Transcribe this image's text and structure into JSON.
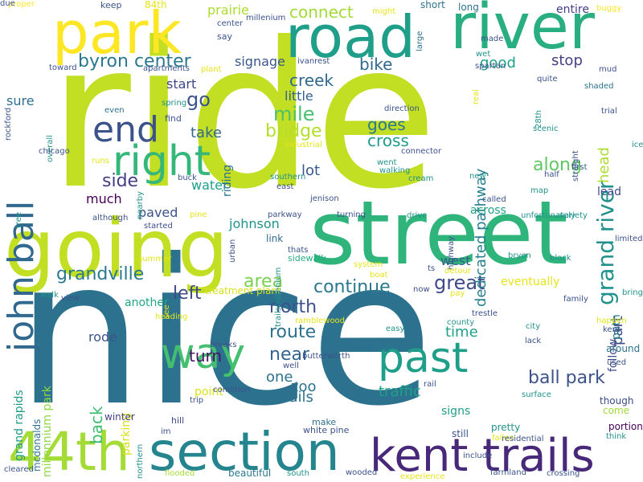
{
  "words": [
    {
      "text": "ride",
      "color": "#c2df23",
      "vertical": false
    },
    {
      "text": "nice",
      "color": "#2c728e",
      "vertical": false
    },
    {
      "text": "street",
      "color": "#2fb47c",
      "vertical": false
    },
    {
      "text": "going",
      "color": "#c2df23",
      "vertical": false
    },
    {
      "text": "river",
      "color": "#28ae80",
      "vertical": false
    },
    {
      "text": "road",
      "color": "#1f9e89",
      "vertical": false
    },
    {
      "text": "park",
      "color": "#fde725",
      "vertical": false
    },
    {
      "text": "section",
      "color": "#25858e",
      "vertical": false
    },
    {
      "text": "44th",
      "color": "#a5db36",
      "vertical": false
    },
    {
      "text": "kent trails",
      "color": "#482878",
      "vertical": false
    },
    {
      "text": "past",
      "color": "#1f9e89",
      "vertical": false
    },
    {
      "text": "way",
      "color": "#44bf70",
      "vertical": false
    },
    {
      "text": "right",
      "color": "#35b779",
      "vertical": false
    },
    {
      "text": "end",
      "color": "#3b528b",
      "vertical": false
    },
    {
      "text": "john ball",
      "color": "#31688e",
      "vertical": true
    },
    {
      "text": "byron center",
      "color": "#2a788e",
      "vertical": false
    },
    {
      "text": "grand river",
      "color": "#21918c",
      "vertical": true
    },
    {
      "text": "great",
      "color": "#3e4a89",
      "vertical": false
    },
    {
      "text": "continue",
      "color": "#2a788e",
      "vertical": false
    },
    {
      "text": "grandville",
      "color": "#2a788e",
      "vertical": false
    },
    {
      "text": "along",
      "color": "#5ec962",
      "vertical": false
    },
    {
      "text": "mile",
      "color": "#4ac16d",
      "vertical": false
    },
    {
      "text": "bridge",
      "color": "#b5de2b",
      "vertical": false
    },
    {
      "text": "go",
      "color": "#3b528b",
      "vertical": false
    },
    {
      "text": "side",
      "color": "#433e85",
      "vertical": false
    },
    {
      "text": "area",
      "color": "#7ad151",
      "vertical": false
    },
    {
      "text": "left",
      "color": "#3e4a89",
      "vertical": false
    },
    {
      "text": "north",
      "color": "#3b528b",
      "vertical": false
    },
    {
      "text": "route",
      "color": "#2c728e",
      "vertical": false
    },
    {
      "text": "near",
      "color": "#32648e",
      "vertical": false
    },
    {
      "text": "ball park",
      "color": "#3b528b",
      "vertical": false
    },
    {
      "text": "dedicated pathway",
      "color": "#277f8e",
      "vertical": true
    },
    {
      "text": "cross",
      "color": "#1e9b8a",
      "vertical": false
    },
    {
      "text": "goes",
      "color": "#2a788e",
      "vertical": false
    },
    {
      "text": "creek",
      "color": "#31688e",
      "vertical": false
    },
    {
      "text": "bike",
      "color": "#31688e",
      "vertical": false
    },
    {
      "text": "connect",
      "color": "#a2da37",
      "vertical": false
    },
    {
      "text": "stop",
      "color": "#433e85",
      "vertical": false
    },
    {
      "text": "good",
      "color": "#1fa187",
      "vertical": false
    },
    {
      "text": "signage",
      "color": "#39568c",
      "vertical": false
    },
    {
      "text": "prairie",
      "color": "#addc30",
      "vertical": false
    },
    {
      "text": "lot",
      "color": "#38588c",
      "vertical": false
    },
    {
      "text": "take",
      "color": "#31688e",
      "vertical": false
    },
    {
      "text": "back",
      "color": "#3fbc73",
      "vertical": true
    },
    {
      "text": "turn",
      "color": "#471164",
      "vertical": false
    },
    {
      "text": "time",
      "color": "#1fa088",
      "vertical": false
    },
    {
      "text": "one",
      "color": "#2c728e",
      "vertical": false
    },
    {
      "text": "zoo",
      "color": "#2d708e",
      "vertical": false
    },
    {
      "text": "trails",
      "color": "#2c728e",
      "vertical": false
    },
    {
      "text": "traffic",
      "color": "#1fa188",
      "vertical": false
    },
    {
      "text": "part",
      "color": "#3e4a89",
      "vertical": true
    },
    {
      "text": "path",
      "color": "#287c8e",
      "vertical": true
    },
    {
      "text": "head",
      "color": "#addc30",
      "vertical": true
    },
    {
      "text": "west",
      "color": "#365c8d",
      "vertical": false
    },
    {
      "text": "water",
      "color": "#1fa088",
      "vertical": false
    },
    {
      "text": "much",
      "color": "#440154",
      "vertical": false
    },
    {
      "text": "paved",
      "color": "#3b528b",
      "vertical": false
    },
    {
      "text": "johnson",
      "color": "#20928c",
      "vertical": false
    },
    {
      "text": "sure",
      "color": "#2d708e",
      "vertical": false
    },
    {
      "text": "little",
      "color": "#35608d",
      "vertical": false
    },
    {
      "text": "start",
      "color": "#3f4788",
      "vertical": false
    },
    {
      "text": "riding",
      "color": "#2c728e",
      "vertical": true
    },
    {
      "text": "rode",
      "color": "#3b528b",
      "vertical": false
    },
    {
      "text": "millennium park",
      "color": "#8fd744",
      "vertical": true
    },
    {
      "text": "grand rapids",
      "color": "#1e9c89",
      "vertical": true
    },
    {
      "text": "another",
      "color": "#21a685",
      "vertical": false
    },
    {
      "text": "parking",
      "color": "#d8e219",
      "vertical": true
    },
    {
      "text": "point",
      "color": "#d8e219",
      "vertical": false
    },
    {
      "text": "eventually",
      "color": "#e5e419",
      "vertical": false
    },
    {
      "text": "across",
      "color": "#20a386",
      "vertical": false
    },
    {
      "text": "lead",
      "color": "#3e4a89",
      "vertical": false
    },
    {
      "text": "follow",
      "color": "#3e4a89",
      "vertical": true
    },
    {
      "text": "signs",
      "color": "#1f9e89",
      "vertical": false
    },
    {
      "text": "entire",
      "color": "#433e85",
      "vertical": false
    },
    {
      "text": "treatment plant",
      "color": "#d8e219",
      "vertical": false
    },
    {
      "text": "link",
      "color": "#31688e",
      "vertical": false
    },
    {
      "text": "sidewalk",
      "color": "#26ad81",
      "vertical": false
    },
    {
      "text": "winter",
      "color": "#433e85",
      "vertical": false
    },
    {
      "text": "hill",
      "color": "#3e4a89",
      "vertical": false
    },
    {
      "text": "make",
      "color": "#2d708e",
      "vertical": false
    },
    {
      "text": "white pine",
      "color": "#3b528b",
      "vertical": false
    },
    {
      "text": "bit",
      "color": "#2a788e",
      "vertical": false
    },
    {
      "text": "pretty",
      "color": "#21918c",
      "vertical": false
    },
    {
      "text": "still",
      "color": "#3b528b",
      "vertical": false
    },
    {
      "text": "beautiful",
      "color": "#2a788e",
      "vertical": false
    },
    {
      "text": "around",
      "color": "#2c728e",
      "vertical": false
    },
    {
      "text": "though",
      "color": "#3e4a89",
      "vertical": false
    },
    {
      "text": "portion",
      "color": "#440154",
      "vertical": false
    },
    {
      "text": "come",
      "color": "#a0da39",
      "vertical": false
    },
    {
      "text": "mcdonalds",
      "color": "#2c728e",
      "vertical": true
    },
    {
      "text": "short",
      "color": "#2c728e",
      "vertical": false
    },
    {
      "text": "long",
      "color": "#2c728e",
      "vertical": false
    },
    {
      "text": "84th",
      "color": "#e5e419",
      "vertical": false
    },
    {
      "text": "keep",
      "color": "#3b528b",
      "vertical": false
    },
    {
      "text": "proper",
      "color": "#fde725",
      "vertical": false
    },
    {
      "text": "buggy",
      "color": "#fde725",
      "vertical": false
    },
    {
      "text": "millenium",
      "color": "#3b528b",
      "vertical": false
    },
    {
      "text": "might",
      "color": "#e5e419",
      "vertical": false
    },
    {
      "text": "large",
      "color": "#2c728e",
      "vertical": true
    },
    {
      "text": "center",
      "color": "#3b528b",
      "vertical": false
    },
    {
      "text": "say",
      "color": "#3b528b",
      "vertical": false
    },
    {
      "text": "ivanrest",
      "color": "#3b528b",
      "vertical": false
    },
    {
      "text": "toward",
      "color": "#3b528b",
      "vertical": false
    },
    {
      "text": "apartments",
      "color": "#3b528b",
      "vertical": false
    },
    {
      "text": "plant",
      "color": "#e5e419",
      "vertical": false
    },
    {
      "text": "made",
      "color": "#3b528b",
      "vertical": false
    },
    {
      "text": "wet",
      "color": "#21918c",
      "vertical": false
    },
    {
      "text": "spartan",
      "color": "#3b528b",
      "vertical": false
    },
    {
      "text": "quite",
      "color": "#3b528b",
      "vertical": false
    },
    {
      "text": "shaded",
      "color": "#2c728e",
      "vertical": false
    },
    {
      "text": "mud",
      "color": "#3b528b",
      "vertical": false
    },
    {
      "text": "real",
      "color": "#e5e419",
      "vertical": true
    },
    {
      "text": "trial",
      "color": "#3b528b",
      "vertical": false
    },
    {
      "text": "ice",
      "color": "#21918c",
      "vertical": false
    },
    {
      "text": "overall",
      "color": "#21918c",
      "vertical": true
    },
    {
      "text": "rockford",
      "color": "#3b528b",
      "vertical": true
    },
    {
      "text": "even",
      "color": "#2c728e",
      "vertical": false
    },
    {
      "text": "spring",
      "color": "#21918c",
      "vertical": false
    },
    {
      "text": "find",
      "color": "#3b528b",
      "vertical": false
    },
    {
      "text": "direction",
      "color": "#3b528b",
      "vertical": false
    },
    {
      "text": "scenic",
      "color": "#21918c",
      "vertical": false
    },
    {
      "text": "28th",
      "color": "#21918c",
      "vertical": true
    },
    {
      "text": "chicago",
      "color": "#3b528b",
      "vertical": false
    },
    {
      "text": "runs",
      "color": "#e5e419",
      "vertical": false
    },
    {
      "text": "buck",
      "color": "#3b528b",
      "vertical": false
    },
    {
      "text": "industrial",
      "color": "#e5e419",
      "vertical": false
    },
    {
      "text": "connector",
      "color": "#3b528b",
      "vertical": false
    },
    {
      "text": "new",
      "color": "#21918c",
      "vertical": false
    },
    {
      "text": "straight",
      "color": "#3b528b",
      "vertical": true
    },
    {
      "text": "first",
      "color": "#3b528b",
      "vertical": false
    },
    {
      "text": "went",
      "color": "#21918c",
      "vertical": false
    },
    {
      "text": "walking",
      "color": "#21918c",
      "vertical": false
    },
    {
      "text": "cream",
      "color": "#21918c",
      "vertical": false
    },
    {
      "text": "half",
      "color": "#3b528b",
      "vertical": false
    },
    {
      "text": "map",
      "color": "#21918c",
      "vertical": false
    },
    {
      "text": "nearby",
      "color": "#21918c",
      "vertical": true
    },
    {
      "text": "southern",
      "color": "#21918c",
      "vertical": false
    },
    {
      "text": "east",
      "color": "#3b528b",
      "vertical": false
    },
    {
      "text": "jenison",
      "color": "#3b528b",
      "vertical": false
    },
    {
      "text": "called",
      "color": "#3b528b",
      "vertical": false
    },
    {
      "text": "tree",
      "color": "#21918c",
      "vertical": true
    },
    {
      "text": "although",
      "color": "#3b528b",
      "vertical": false
    },
    {
      "text": "pine",
      "color": "#e5e419",
      "vertical": false
    },
    {
      "text": "parkway",
      "color": "#3b528b",
      "vertical": false
    },
    {
      "text": "turning",
      "color": "#3b528b",
      "vertical": false
    },
    {
      "text": "drive",
      "color": "#21918c",
      "vertical": false
    },
    {
      "text": "unfortunately",
      "color": "#21918c",
      "vertical": false
    },
    {
      "text": "variety",
      "color": "#21918c",
      "vertical": false
    },
    {
      "text": "summer",
      "color": "#e5e419",
      "vertical": false
    },
    {
      "text": "urban",
      "color": "#3b528b",
      "vertical": true
    },
    {
      "text": "thats",
      "color": "#3b528b",
      "vertical": false
    },
    {
      "text": "system",
      "color": "#e5e419",
      "vertical": false
    },
    {
      "text": "ts",
      "color": "#3b528b",
      "vertical": false
    },
    {
      "text": "highway",
      "color": "#3b528b",
      "vertical": true
    },
    {
      "text": "bryon",
      "color": "#21918c",
      "vertical": false
    },
    {
      "text": "block",
      "color": "#21918c",
      "vertical": false
    },
    {
      "text": "limited",
      "color": "#3b528b",
      "vertical": false
    },
    {
      "text": "bring",
      "color": "#21918c",
      "vertical": false
    },
    {
      "text": "trailsmillenium",
      "color": "#21918c",
      "vertical": true
    },
    {
      "text": "detour",
      "color": "#e5e419",
      "vertical": false
    },
    {
      "text": "boat",
      "color": "#e5e419",
      "vertical": false
    },
    {
      "text": "now",
      "color": "#3b528b",
      "vertical": false
    },
    {
      "text": "pay",
      "color": "#e5e419",
      "vertical": false
    },
    {
      "text": "family",
      "color": "#3b528b",
      "vertical": false
    },
    {
      "text": "walk",
      "color": "#21918c",
      "vertical": false
    },
    {
      "text": "view",
      "color": "#3b528b",
      "vertical": false
    },
    {
      "text": "see",
      "color": "#e5e419",
      "vertical": true
    },
    {
      "text": "heading",
      "color": "#e5e419",
      "vertical": false
    },
    {
      "text": "ramblewood",
      "color": "#e5e419",
      "vertical": false
    },
    {
      "text": "trestle",
      "color": "#3b528b",
      "vertical": false
    },
    {
      "text": "county",
      "color": "#21918c",
      "vertical": false
    },
    {
      "text": "happen",
      "color": "#e5e419",
      "vertical": false
    },
    {
      "text": "kent",
      "color": "#3b528b",
      "vertical": false
    },
    {
      "text": "city",
      "color": "#21918c",
      "vertical": false
    },
    {
      "text": "easy",
      "color": "#21918c",
      "vertical": false
    },
    {
      "text": "lack",
      "color": "#3b528b",
      "vertical": false
    },
    {
      "text": "breaks",
      "color": "#3b528b",
      "vertical": false
    },
    {
      "text": "well",
      "color": "#3b528b",
      "vertical": false
    },
    {
      "text": "butterworth",
      "color": "#3b528b",
      "vertical": false
    },
    {
      "text": "rail",
      "color": "#3b528b",
      "vertical": false
    },
    {
      "text": "used",
      "color": "#3b528b",
      "vertical": false
    },
    {
      "text": "surface",
      "color": "#21918c",
      "vertical": false
    },
    {
      "text": "condition",
      "color": "#3b528b",
      "vertical": false
    },
    {
      "text": "trip",
      "color": "#3b528b",
      "vertical": false
    },
    {
      "text": "fallen",
      "color": "#e5e419",
      "vertical": false
    },
    {
      "text": "northern",
      "color": "#21918c",
      "vertical": true
    },
    {
      "text": "im",
      "color": "#3b528b",
      "vertical": false
    },
    {
      "text": "residential",
      "color": "#3b528b",
      "vertical": false
    },
    {
      "text": "think",
      "color": "#21918c",
      "vertical": false
    },
    {
      "text": "include",
      "color": "#3b528b",
      "vertical": false
    },
    {
      "text": "cleared",
      "color": "#3b528b",
      "vertical": false
    },
    {
      "text": "flooded",
      "color": "#a5db36",
      "vertical": false
    },
    {
      "text": "south",
      "color": "#21918c",
      "vertical": false
    },
    {
      "text": "wooded",
      "color": "#3b528b",
      "vertical": false
    },
    {
      "text": "experience",
      "color": "#e5e419",
      "vertical": false
    },
    {
      "text": "farmland",
      "color": "#3b528b",
      "vertical": false
    },
    {
      "text": "crossing",
      "color": "#3b528b",
      "vertical": false
    },
    {
      "text": "started",
      "color": "#3b528b",
      "vertical": false
    },
    {
      "text": "due",
      "color": "#3b528b",
      "vertical": false
    }
  ]
}
